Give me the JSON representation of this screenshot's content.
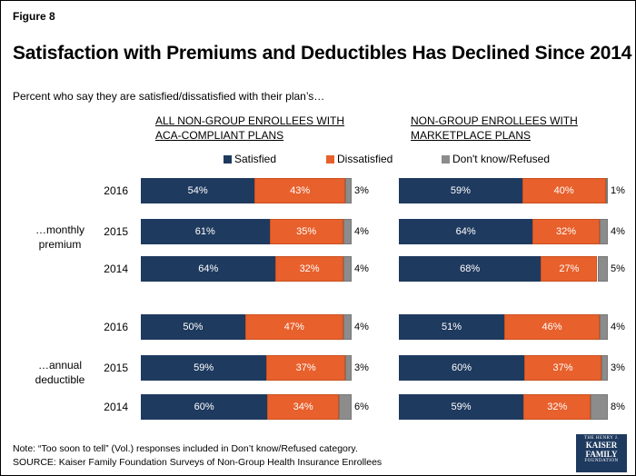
{
  "figure_label": "Figure 8",
  "title": "Satisfaction with Premiums and Deductibles Has Declined Since 2014",
  "subtitle": "Percent who say they are satisfied/dissatisfied with their plan’s…",
  "legend": [
    {
      "name": "Satisfied",
      "color": "#1f3a5f"
    },
    {
      "name": "Dissatisfied",
      "color": "#e8602c"
    },
    {
      "name": "Don't know/Refused",
      "color": "#8c8c8c"
    }
  ],
  "row_labels": [
    "…monthly premium",
    "…annual deductible"
  ],
  "chart_data": [
    {
      "type": "bar",
      "orientation": "horizontal",
      "stacked": true,
      "panel_title": "ALL NON-GROUP ENROLLEES WITH ACA-COMPLIANT PLANS",
      "groups": [
        {
          "label": "…monthly premium",
          "years": [
            "2016",
            "2015",
            "2014"
          ],
          "series": [
            {
              "name": "Satisfied",
              "values": [
                54,
                61,
                64
              ]
            },
            {
              "name": "Dissatisfied",
              "values": [
                43,
                35,
                32
              ]
            },
            {
              "name": "Don't know/Refused",
              "values": [
                3,
                4,
                4
              ]
            }
          ]
        },
        {
          "label": "…annual deductible",
          "years": [
            "2016",
            "2015",
            "2014"
          ],
          "series": [
            {
              "name": "Satisfied",
              "values": [
                50,
                59,
                60
              ]
            },
            {
              "name": "Dissatisfied",
              "values": [
                47,
                37,
                34
              ]
            },
            {
              "name": "Don't know/Refused",
              "values": [
                4,
                3,
                6
              ]
            }
          ]
        }
      ],
      "unit": "%"
    },
    {
      "type": "bar",
      "orientation": "horizontal",
      "stacked": true,
      "panel_title": "NON-GROUP ENROLLEES WITH MARKETPLACE PLANS",
      "groups": [
        {
          "label": "…monthly premium",
          "years": [
            "2016",
            "2015",
            "2014"
          ],
          "series": [
            {
              "name": "Satisfied",
              "values": [
                59,
                64,
                68
              ]
            },
            {
              "name": "Dissatisfied",
              "values": [
                40,
                32,
                27
              ]
            },
            {
              "name": "Don't know/Refused",
              "values": [
                1,
                4,
                5
              ]
            }
          ]
        },
        {
          "label": "…annual deductible",
          "years": [
            "2016",
            "2015",
            "2014"
          ],
          "series": [
            {
              "name": "Satisfied",
              "values": [
                51,
                60,
                59
              ]
            },
            {
              "name": "Dissatisfied",
              "values": [
                46,
                37,
                32
              ]
            },
            {
              "name": "Don't know/Refused",
              "values": [
                4,
                3,
                8
              ]
            }
          ]
        }
      ],
      "unit": "%"
    }
  ],
  "note": "Note: “Too soon to tell” (Vol.) responses included in Don’t know/Refused category.",
  "source": "SOURCE: Kaiser Family Foundation Surveys of Non-Group Health Insurance Enrollees",
  "logo": {
    "line1": "THE HENRY J.",
    "line2": "KAISER",
    "line3": "FAMILY",
    "line4": "FOUNDATION"
  }
}
